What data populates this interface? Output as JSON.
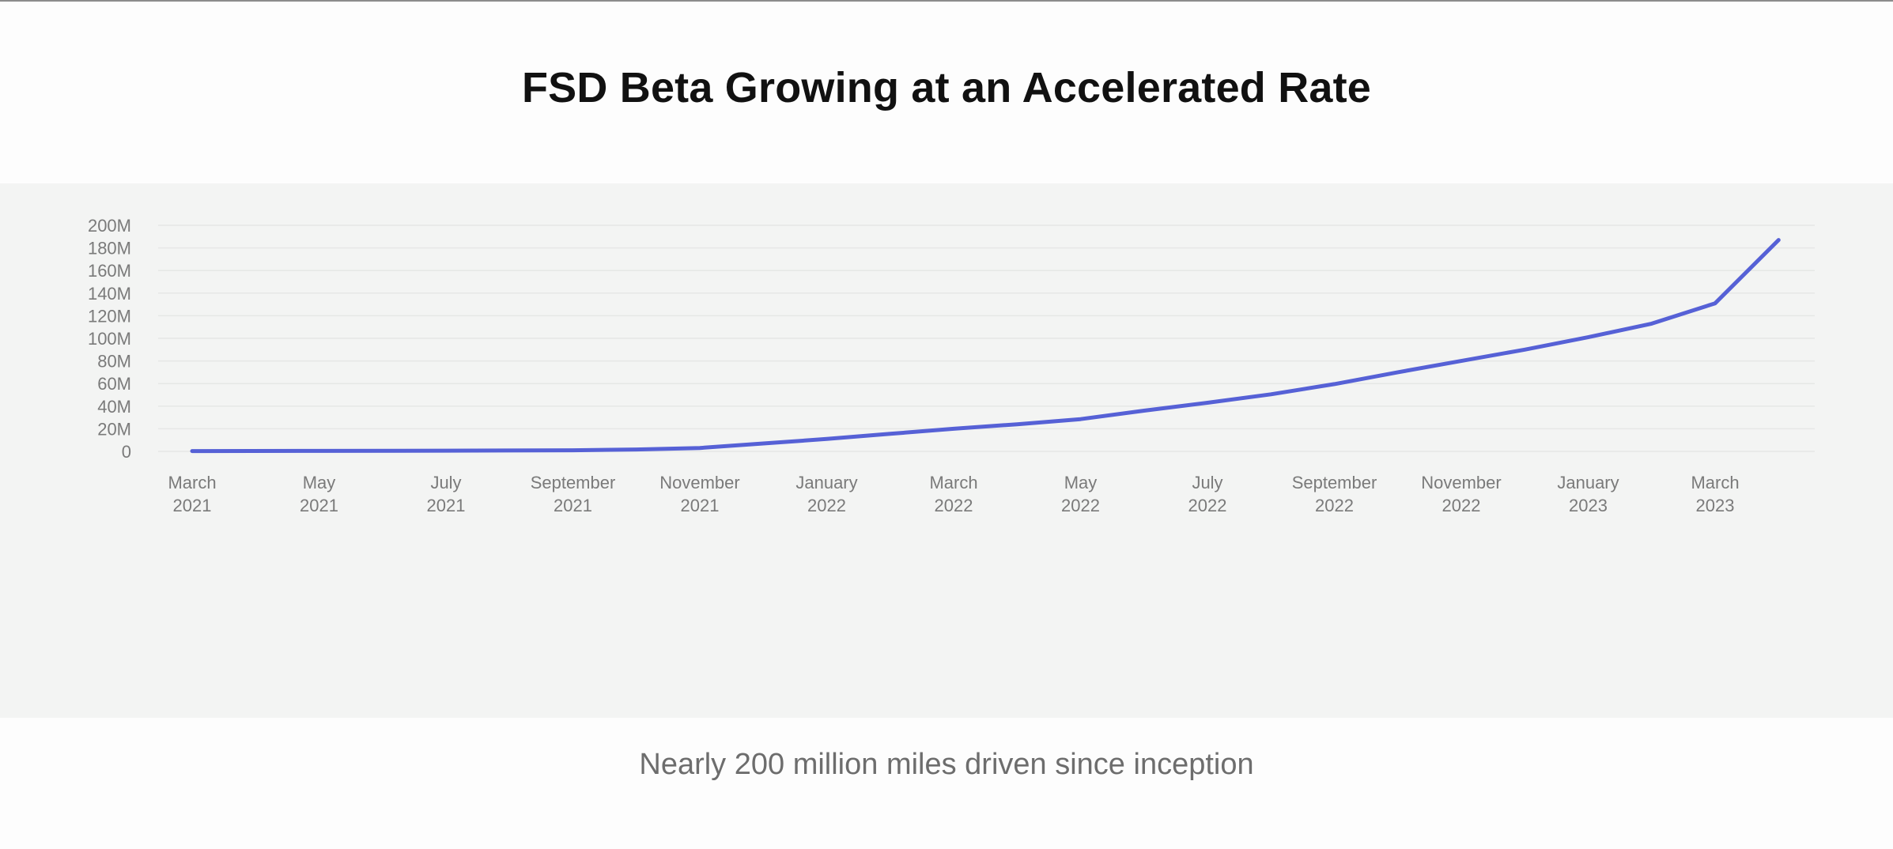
{
  "title": "FSD Beta Growing at an Accelerated Rate",
  "caption": "Nearly 200 million miles driven since inception",
  "colors": {
    "line": "#5661d6",
    "band": "#f3f4f3",
    "text": "#7a7a7a"
  },
  "chart_data": {
    "type": "line",
    "title": "FSD Beta Growing at an Accelerated Rate",
    "xlabel": "",
    "ylabel": "",
    "ylim": [
      0,
      200
    ],
    "grid": true,
    "y_ticks": [
      "0",
      "20M",
      "40M",
      "60M",
      "80M",
      "100M",
      "120M",
      "140M",
      "160M",
      "180M",
      "200M"
    ],
    "x_ticks": [
      {
        "line1": "March",
        "line2": "2021",
        "month": 0
      },
      {
        "line1": "May",
        "line2": "2021",
        "month": 2
      },
      {
        "line1": "July",
        "line2": "2021",
        "month": 4
      },
      {
        "line1": "September",
        "line2": "2021",
        "month": 6
      },
      {
        "line1": "November",
        "line2": "2021",
        "month": 8
      },
      {
        "line1": "January",
        "line2": "2022",
        "month": 10
      },
      {
        "line1": "March",
        "line2": "2022",
        "month": 12
      },
      {
        "line1": "May",
        "line2": "2022",
        "month": 14
      },
      {
        "line1": "July",
        "line2": "2022",
        "month": 16
      },
      {
        "line1": "September",
        "line2": "2022",
        "month": 18
      },
      {
        "line1": "November",
        "line2": "2022",
        "month": 20
      },
      {
        "line1": "January",
        "line2": "2023",
        "month": 22
      },
      {
        "line1": "March",
        "line2": "2023",
        "month": 24
      }
    ],
    "series": [
      {
        "x": [
          0,
          2,
          4,
          6,
          7,
          8,
          9,
          10,
          11,
          12,
          13,
          14,
          15,
          16,
          17,
          18,
          19,
          20,
          21,
          22,
          23,
          24,
          25
        ],
        "values": [
          0.3,
          0.4,
          0.6,
          1.0,
          1.7,
          3,
          7,
          11,
          15.5,
          20,
          24,
          28.5,
          36,
          43,
          50.5,
          59.5,
          70,
          80,
          90,
          101,
          113,
          131,
          187
        ]
      }
    ]
  }
}
